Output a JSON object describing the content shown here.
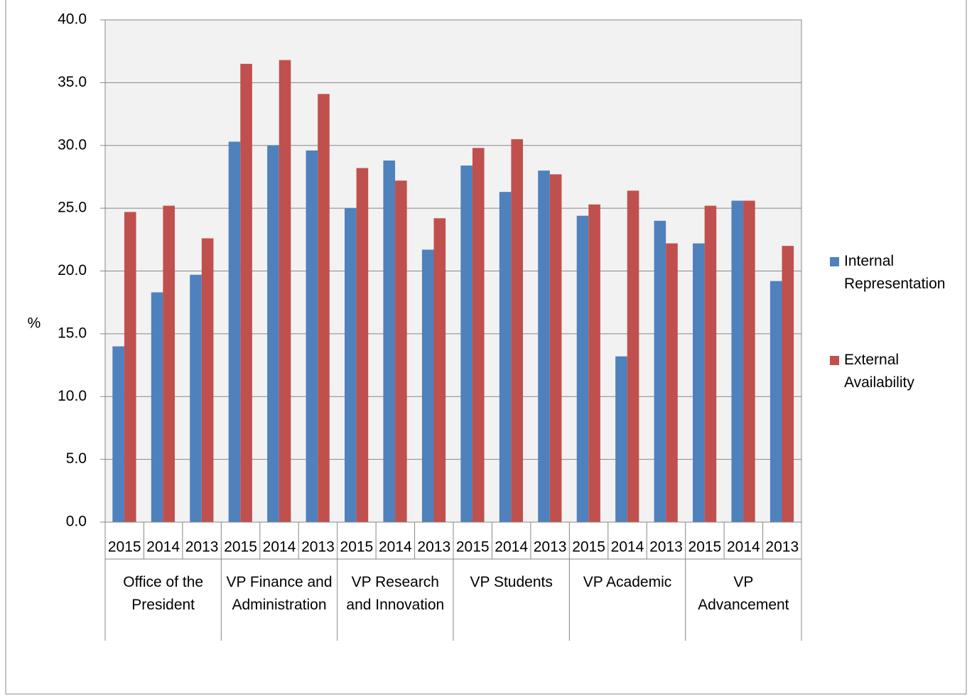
{
  "chart_data": {
    "type": "bar",
    "y_label": "%",
    "categories": [
      "2015",
      "2014",
      "2013",
      "2015",
      "2014",
      "2013",
      "2015",
      "2014",
      "2013",
      "2015",
      "2014",
      "2013",
      "2015",
      "2014",
      "2013",
      "2015",
      "2014",
      "2013"
    ],
    "groups": [
      "Office of the President",
      "VP Finance and Administration",
      "VP Research and Innovation",
      "VP Students",
      "VP Academic",
      "VP Advancement"
    ],
    "series": [
      {
        "name": "Internal Representation",
        "color": "#4f81bd",
        "values": [
          14.0,
          18.3,
          19.7,
          30.3,
          30.0,
          29.6,
          25.0,
          28.8,
          21.7,
          28.4,
          26.3,
          28.0,
          24.4,
          13.2,
          24.0,
          22.2,
          25.6,
          19.2
        ]
      },
      {
        "name": "External Availability",
        "color": "#c0504d",
        "values": [
          24.7,
          25.2,
          22.6,
          36.5,
          36.8,
          34.1,
          28.2,
          27.2,
          24.2,
          29.8,
          30.5,
          27.7,
          25.3,
          26.4,
          22.2,
          25.2,
          25.6,
          22.0
        ]
      }
    ],
    "ylim": [
      0,
      40
    ],
    "yticks": [
      {
        "value": 0,
        "label": "0.0"
      },
      {
        "value": 5,
        "label": "5.0"
      },
      {
        "value": 10,
        "label": "10.0"
      },
      {
        "value": 15,
        "label": "15.0"
      },
      {
        "value": 20,
        "label": "20.0"
      },
      {
        "value": 25,
        "label": "25.0"
      },
      {
        "value": 30,
        "label": "30.0"
      },
      {
        "value": 35,
        "label": "35.0"
      },
      {
        "value": 40,
        "label": "40.0"
      }
    ],
    "grid": true,
    "legend": "right"
  }
}
